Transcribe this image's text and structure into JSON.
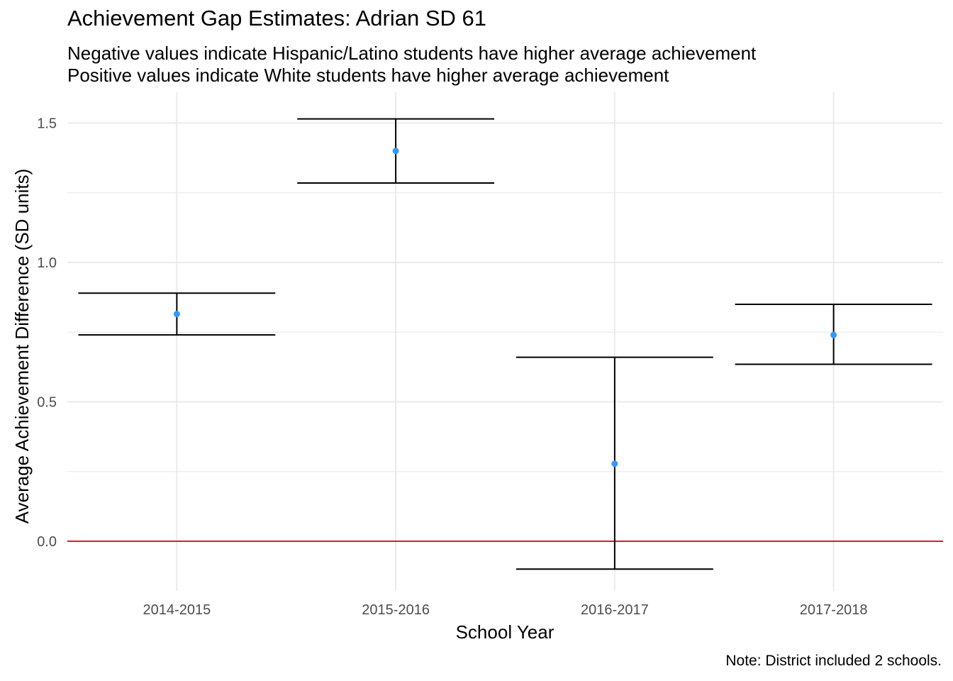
{
  "title": "Achievement Gap Estimates: Adrian SD 61",
  "subtitle": [
    "Negative values indicate Hispanic/Latino students have higher average achievement",
    "Positive values indicate White students have higher average achievement"
  ],
  "caption": "Note: District included 2 schools.",
  "chart_data": {
    "type": "scatter",
    "xlabel": "School Year",
    "ylabel": "Average Achievement Difference (SD units)",
    "categories": [
      "2014-2015",
      "2015-2016",
      "2016-2017",
      "2017-2018"
    ],
    "estimate": [
      0.815,
      1.4,
      0.278,
      0.74
    ],
    "lower": [
      0.74,
      1.285,
      -0.1,
      0.635
    ],
    "upper": [
      0.89,
      1.515,
      0.66,
      0.85
    ],
    "ylim": [
      -0.17,
      1.6
    ],
    "yticks": [
      0.0,
      0.5,
      1.0,
      1.5
    ],
    "ytick_labels": [
      "0.0",
      "0.5",
      "1.0",
      "1.5"
    ],
    "reference_line": 0,
    "grid": true,
    "colors": {
      "point": "#3399ff",
      "errorbar": "#000000",
      "reference_line": "#e41a1c",
      "grid": "#ebebeb"
    }
  }
}
